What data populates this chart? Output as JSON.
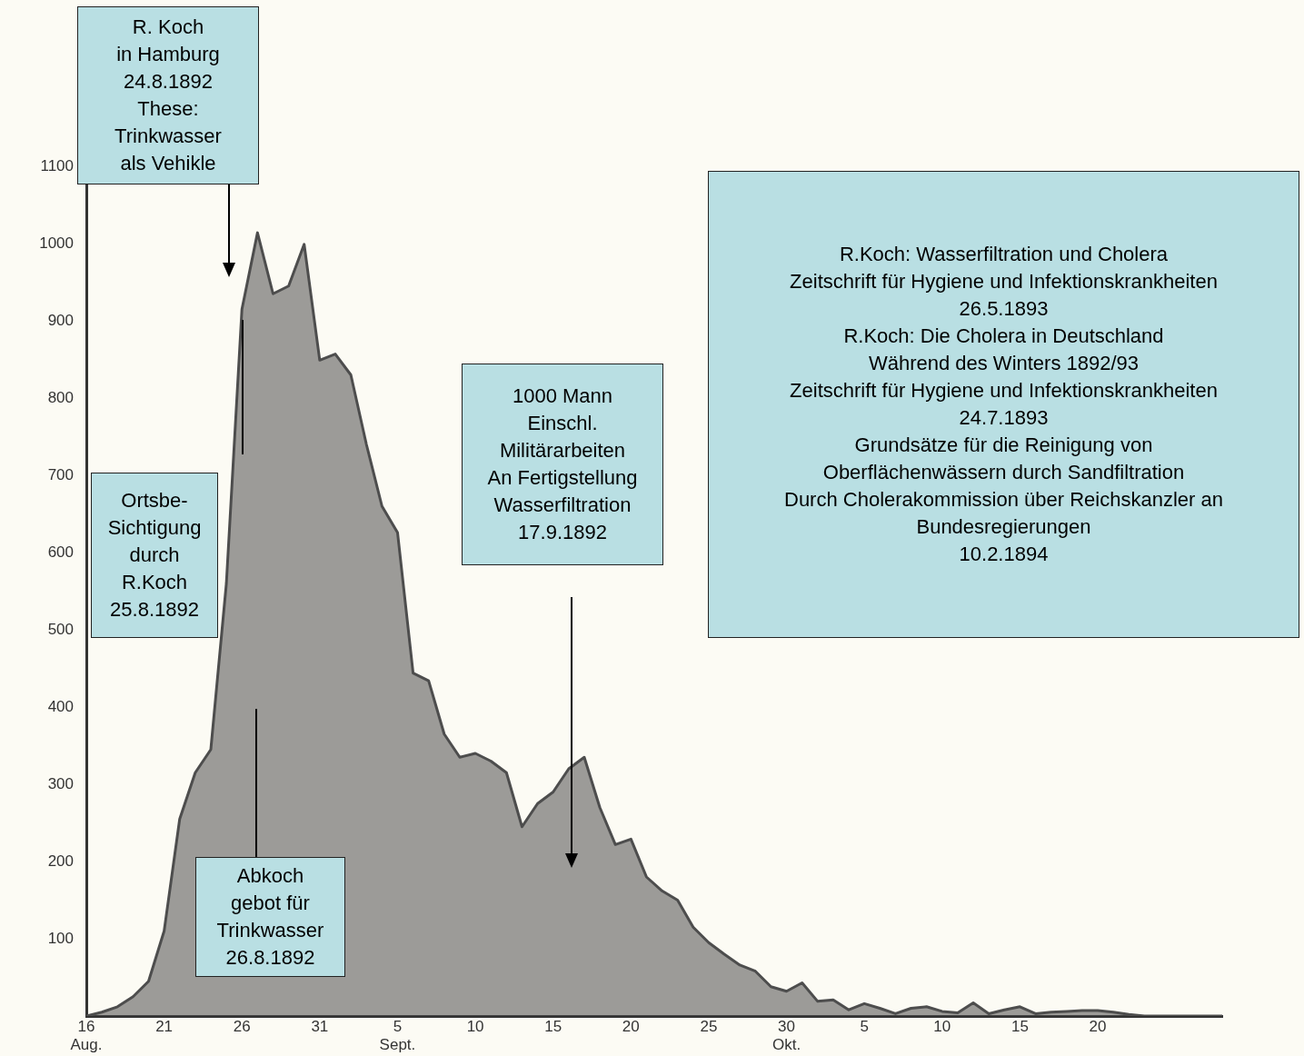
{
  "chart_data": {
    "type": "area",
    "x": [
      "1892-08-16",
      "1892-08-17",
      "1892-08-18",
      "1892-08-19",
      "1892-08-20",
      "1892-08-21",
      "1892-08-22",
      "1892-08-23",
      "1892-08-24",
      "1892-08-25",
      "1892-08-26",
      "1892-08-27",
      "1892-08-28",
      "1892-08-29",
      "1892-08-30",
      "1892-08-31",
      "1892-09-01",
      "1892-09-02",
      "1892-09-03",
      "1892-09-04",
      "1892-09-05",
      "1892-09-06",
      "1892-09-07",
      "1892-09-08",
      "1892-09-09",
      "1892-09-10",
      "1892-09-11",
      "1892-09-12",
      "1892-09-13",
      "1892-09-14",
      "1892-09-15",
      "1892-09-16",
      "1892-09-17",
      "1892-09-18",
      "1892-09-19",
      "1892-09-20",
      "1892-09-21",
      "1892-09-22",
      "1892-09-23",
      "1892-09-24",
      "1892-09-25",
      "1892-09-26",
      "1892-09-27",
      "1892-09-28",
      "1892-09-29",
      "1892-09-30",
      "1892-10-01",
      "1892-10-02",
      "1892-10-03",
      "1892-10-04",
      "1892-10-05",
      "1892-10-06",
      "1892-10-07",
      "1892-10-08",
      "1892-10-09",
      "1892-10-10",
      "1892-10-11",
      "1892-10-12",
      "1892-10-13",
      "1892-10-14",
      "1892-10-15",
      "1892-10-16",
      "1892-10-17",
      "1892-10-18",
      "1892-10-19",
      "1892-10-20",
      "1892-10-21",
      "1892-10-22",
      "1892-10-23",
      "1892-10-24",
      "1892-10-25",
      "1892-10-26",
      "1892-10-27",
      "1892-10-28"
    ],
    "series": [
      {
        "color": "#4d4d4d",
        "values": [
          0,
          5,
          12,
          25,
          45,
          110,
          255,
          315,
          345,
          560,
          915,
          1014,
          935,
          945,
          999,
          849,
          857,
          830,
          740,
          660,
          626,
          444,
          434,
          365,
          335,
          340,
          330,
          315,
          245,
          275,
          290,
          320,
          335,
          270,
          222,
          229,
          180,
          162,
          150,
          115,
          95,
          80,
          66,
          58,
          38,
          32,
          43,
          19,
          21,
          8,
          16,
          10,
          3,
          10,
          12,
          6,
          4,
          17,
          3,
          8,
          12,
          3,
          5,
          6,
          7,
          7,
          5,
          2,
          0,
          0,
          0,
          0,
          0,
          0
        ]
      }
    ],
    "xlim": [
      "1892-08-16",
      "1892-10-28"
    ],
    "xticks": [
      {
        "value": "1892-08-16",
        "label": "16\nAug."
      },
      {
        "value": "1892-08-21",
        "label": "21"
      },
      {
        "value": "1892-08-26",
        "label": "26"
      },
      {
        "value": "1892-08-31",
        "label": "31"
      },
      {
        "value": "1892-09-05",
        "label": "5\nSept."
      },
      {
        "value": "1892-09-10",
        "label": "10"
      },
      {
        "value": "1892-09-15",
        "label": "15"
      },
      {
        "value": "1892-09-20",
        "label": "20"
      },
      {
        "value": "1892-09-25",
        "label": "25"
      },
      {
        "value": "1892-09-30",
        "label": "30\nOkt."
      },
      {
        "value": "1892-10-05",
        "label": "5"
      },
      {
        "value": "1892-10-10",
        "label": "10"
      },
      {
        "value": "1892-10-15",
        "label": "15"
      },
      {
        "value": "1892-10-20",
        "label": "20"
      }
    ],
    "ylim": [
      0,
      1100
    ],
    "yticks": [
      100,
      200,
      300,
      400,
      500,
      600,
      700,
      800,
      900,
      1000,
      1100
    ],
    "grid": false,
    "legend": false,
    "annotations": [
      "R. Koch\nin Hamburg\n24.8.1892\nThese:\nTrinkwasser\nals Vehikle",
      "Ortsbe-\nSichtigung\ndurch\nR.Koch\n25.8.1892",
      "Abkoch\ngebot für\nTrinkwasser\n26.8.1892",
      "1000 Mann\nEinschl.\nMilitärarbeiten\nAn Fertigstellung\nWasserfiltration\n17.9.1892",
      "R.Koch: Wasserfiltration und Cholera\nZeitschrift für Hygiene und Infektionskrankheiten\n26.5.1893\nR.Koch: Die Cholera in Deutschland\nWährend des Winters 1892/93\nZeitschrift für Hygiene und Infektionskrankheiten\n24.7.1893\nGrundsätze für die Reinigung von\nOberflächenwässern durch Sandfiltration\nDurch Cholerakommission über Reichskanzler an\nBundesregierungen\n10.2.1894"
    ]
  }
}
